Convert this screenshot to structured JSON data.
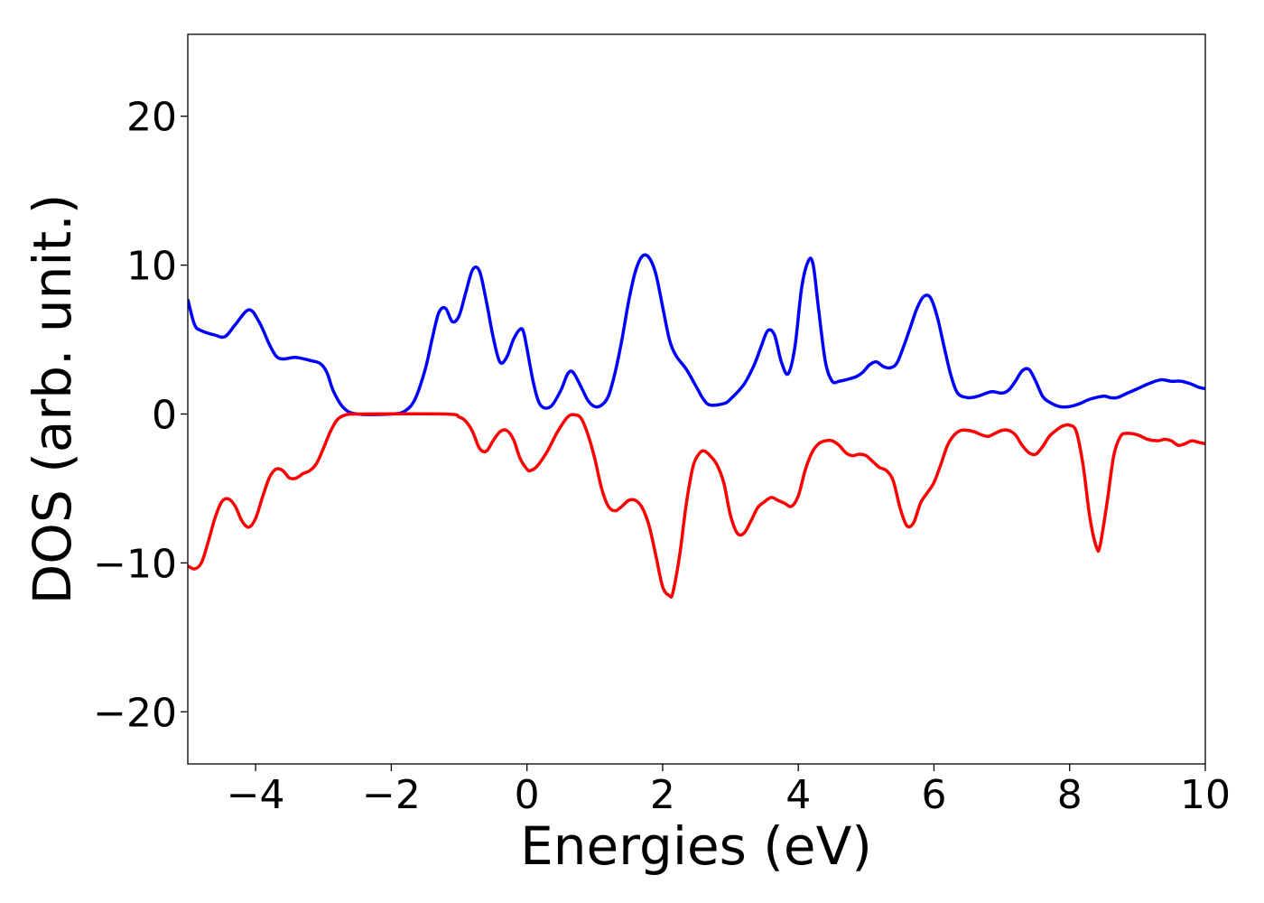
{
  "chart_data": {
    "type": "line",
    "title": "",
    "xlabel": "Energies (eV)",
    "ylabel": "DOS (arb. unit.)",
    "xlim": [
      -5,
      10
    ],
    "ylim": [
      -23.5,
      25.5
    ],
    "xticks": [
      -4,
      -2,
      0,
      2,
      4,
      6,
      8,
      10
    ],
    "yticks": [
      -20,
      -10,
      0,
      10,
      20
    ],
    "xtick_labels": [
      "−4",
      "−2",
      "0",
      "2",
      "4",
      "6",
      "8",
      "10"
    ],
    "ytick_labels": [
      "−20",
      "−10",
      "0",
      "10",
      "20"
    ],
    "grid": false,
    "legend": "none",
    "series": [
      {
        "color": "#0000ff",
        "x": [
          -5.0,
          -4.9,
          -4.8,
          -4.6,
          -4.45,
          -4.3,
          -4.1,
          -3.95,
          -3.8,
          -3.7,
          -3.6,
          -3.4,
          -3.2,
          -3.05,
          -2.95,
          -2.85,
          -2.7,
          -2.5,
          -2.0,
          -1.8,
          -1.65,
          -1.5,
          -1.4,
          -1.3,
          -1.2,
          -1.1,
          -1.0,
          -0.9,
          -0.8,
          -0.7,
          -0.6,
          -0.5,
          -0.4,
          -0.3,
          -0.2,
          -0.1,
          -0.05,
          0.0,
          0.1,
          0.2,
          0.35,
          0.5,
          0.6,
          0.68,
          0.8,
          0.9,
          1.0,
          1.1,
          1.2,
          1.3,
          1.4,
          1.5,
          1.6,
          1.7,
          1.8,
          1.9,
          2.0,
          2.1,
          2.2,
          2.35,
          2.5,
          2.6,
          2.7,
          2.9,
          3.0,
          3.2,
          3.35,
          3.45,
          3.55,
          3.65,
          3.75,
          3.85,
          3.95,
          4.05,
          4.15,
          4.22,
          4.3,
          4.4,
          4.5,
          4.6,
          4.7,
          4.85,
          4.95,
          5.05,
          5.15,
          5.25,
          5.35,
          5.45,
          5.55,
          5.65,
          5.75,
          5.85,
          5.95,
          6.05,
          6.15,
          6.25,
          6.35,
          6.5,
          6.65,
          6.85,
          7.0,
          7.1,
          7.2,
          7.3,
          7.4,
          7.5,
          7.6,
          7.7,
          7.85,
          8.0,
          8.15,
          8.3,
          8.5,
          8.6,
          8.7,
          8.85,
          9.0,
          9.2,
          9.35,
          9.5,
          9.65,
          9.8,
          9.9,
          10.0
        ],
        "y": [
          7.7,
          6.0,
          5.6,
          5.3,
          5.2,
          6.0,
          7.0,
          6.2,
          4.7,
          3.9,
          3.7,
          3.8,
          3.6,
          3.4,
          2.8,
          1.5,
          0.4,
          0.0,
          0.0,
          0.2,
          1.0,
          3.0,
          5.0,
          6.8,
          7.1,
          6.2,
          6.6,
          8.2,
          9.7,
          9.6,
          7.6,
          5.2,
          3.5,
          3.8,
          5.0,
          5.7,
          5.5,
          4.4,
          2.0,
          0.6,
          0.5,
          1.6,
          2.7,
          2.8,
          1.8,
          0.9,
          0.5,
          0.6,
          1.2,
          2.8,
          5.0,
          7.6,
          9.6,
          10.6,
          10.5,
          9.4,
          7.2,
          5.0,
          3.9,
          3.0,
          1.8,
          1.0,
          0.6,
          0.7,
          1.0,
          2.0,
          3.3,
          4.5,
          5.6,
          5.3,
          3.5,
          2.7,
          4.5,
          8.5,
          10.3,
          10.0,
          7.0,
          3.5,
          2.2,
          2.2,
          2.3,
          2.5,
          2.8,
          3.3,
          3.5,
          3.2,
          3.1,
          3.4,
          4.5,
          5.8,
          7.1,
          7.9,
          7.8,
          6.5,
          4.5,
          2.6,
          1.4,
          1.1,
          1.2,
          1.5,
          1.4,
          1.6,
          2.2,
          2.9,
          3.0,
          2.2,
          1.2,
          0.8,
          0.5,
          0.5,
          0.7,
          1.0,
          1.2,
          1.1,
          1.1,
          1.4,
          1.7,
          2.1,
          2.3,
          2.2,
          2.2,
          2.0,
          1.8,
          1.7
        ]
      },
      {
        "color": "#ff0000",
        "x": [
          -5.0,
          -4.9,
          -4.8,
          -4.7,
          -4.6,
          -4.5,
          -4.4,
          -4.3,
          -4.2,
          -4.1,
          -4.0,
          -3.9,
          -3.8,
          -3.7,
          -3.6,
          -3.5,
          -3.4,
          -3.3,
          -3.2,
          -3.1,
          -3.0,
          -2.9,
          -2.8,
          -2.7,
          -2.6,
          -2.5,
          -1.2,
          -1.0,
          -0.9,
          -0.8,
          -0.7,
          -0.6,
          -0.5,
          -0.4,
          -0.3,
          -0.2,
          -0.1,
          0.0,
          0.05,
          0.15,
          0.3,
          0.45,
          0.6,
          0.7,
          0.8,
          0.9,
          1.0,
          1.1,
          1.2,
          1.3,
          1.4,
          1.5,
          1.6,
          1.7,
          1.8,
          1.9,
          2.0,
          2.1,
          2.15,
          2.25,
          2.35,
          2.45,
          2.55,
          2.62,
          2.7,
          2.8,
          2.9,
          3.0,
          3.1,
          3.2,
          3.3,
          3.4,
          3.5,
          3.6,
          3.7,
          3.8,
          3.9,
          4.0,
          4.1,
          4.2,
          4.3,
          4.4,
          4.5,
          4.6,
          4.7,
          4.8,
          4.9,
          5.0,
          5.1,
          5.2,
          5.3,
          5.4,
          5.5,
          5.6,
          5.7,
          5.8,
          5.9,
          6.0,
          6.1,
          6.2,
          6.3,
          6.4,
          6.5,
          6.6,
          6.7,
          6.8,
          6.9,
          7.0,
          7.1,
          7.2,
          7.3,
          7.4,
          7.5,
          7.6,
          7.7,
          7.8,
          7.9,
          8.0,
          8.1,
          8.2,
          8.3,
          8.4,
          8.45,
          8.55,
          8.65,
          8.75,
          8.85,
          9.0,
          9.15,
          9.3,
          9.4,
          9.5,
          9.6,
          9.7,
          9.8,
          9.9,
          10.0
        ],
        "y": [
          -10.2,
          -10.4,
          -10.0,
          -8.6,
          -7.0,
          -5.9,
          -5.7,
          -6.2,
          -7.2,
          -7.6,
          -7.0,
          -5.6,
          -4.3,
          -3.7,
          -3.8,
          -4.3,
          -4.3,
          -4.0,
          -3.8,
          -3.3,
          -2.3,
          -1.2,
          -0.4,
          -0.1,
          0.0,
          0.0,
          0.0,
          -0.2,
          -0.5,
          -1.2,
          -2.3,
          -2.5,
          -1.8,
          -1.2,
          -1.1,
          -1.7,
          -3.0,
          -3.7,
          -3.8,
          -3.5,
          -2.5,
          -1.2,
          -0.2,
          -0.05,
          -0.3,
          -1.4,
          -3.0,
          -5.0,
          -6.2,
          -6.5,
          -6.2,
          -5.8,
          -5.8,
          -6.3,
          -7.5,
          -9.5,
          -11.6,
          -12.2,
          -12.0,
          -9.5,
          -6.0,
          -3.5,
          -2.6,
          -2.5,
          -2.8,
          -3.4,
          -4.6,
          -6.8,
          -8.0,
          -8.0,
          -7.2,
          -6.3,
          -5.9,
          -5.6,
          -5.8,
          -6.0,
          -6.2,
          -5.5,
          -3.8,
          -2.6,
          -2.0,
          -1.8,
          -1.8,
          -2.1,
          -2.6,
          -2.8,
          -2.7,
          -2.8,
          -3.2,
          -3.6,
          -3.8,
          -4.5,
          -6.3,
          -7.5,
          -7.3,
          -6.0,
          -5.3,
          -4.6,
          -3.4,
          -2.1,
          -1.4,
          -1.1,
          -1.1,
          -1.2,
          -1.4,
          -1.5,
          -1.3,
          -1.1,
          -1.1,
          -1.4,
          -2.1,
          -2.6,
          -2.7,
          -2.2,
          -1.5,
          -1.1,
          -0.8,
          -0.75,
          -1.2,
          -3.5,
          -7.0,
          -9.0,
          -8.8,
          -6.0,
          -2.8,
          -1.5,
          -1.3,
          -1.4,
          -1.7,
          -1.8,
          -1.7,
          -1.8,
          -2.1,
          -2.0,
          -1.8,
          -1.9,
          -2.0
        ]
      }
    ]
  }
}
